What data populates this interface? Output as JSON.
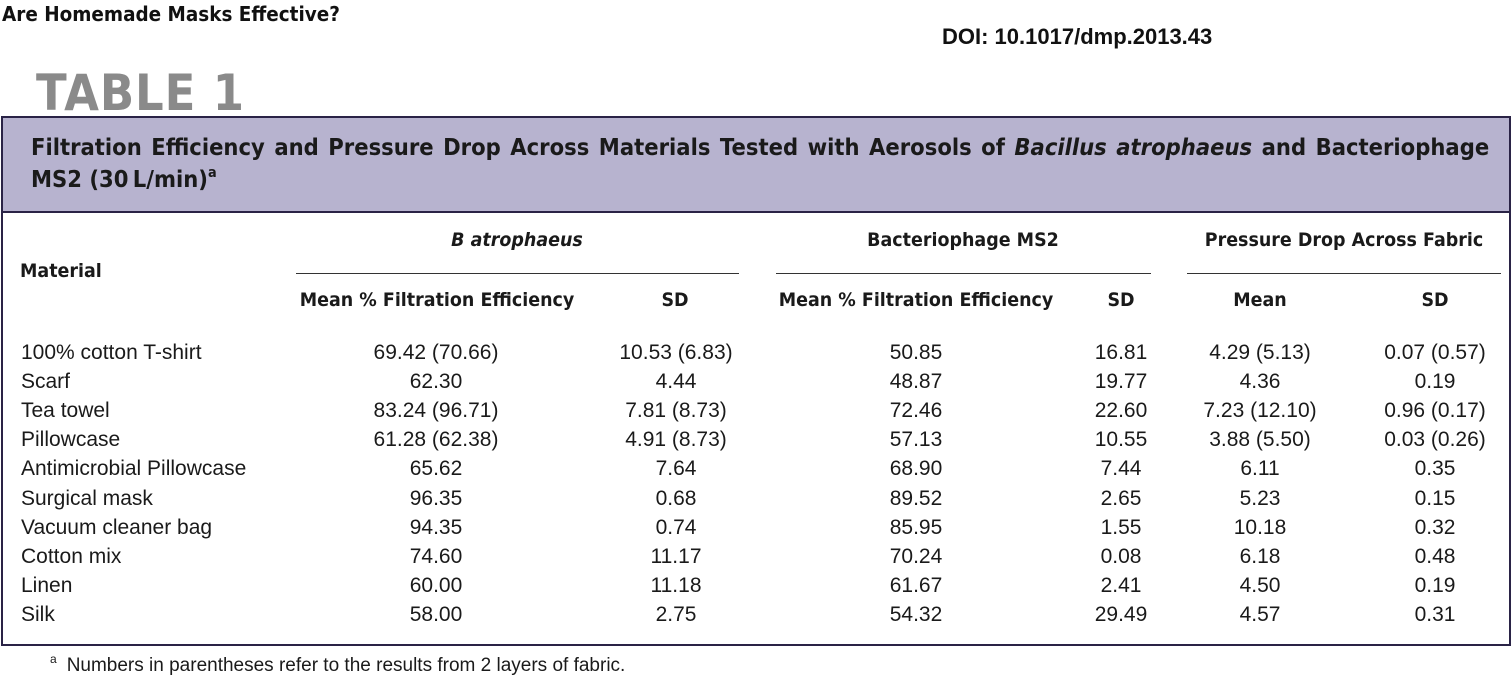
{
  "header": {
    "running_title": "Are Homemade Masks Effective?",
    "doi": "DOI: 10.1017/dmp.2013.43",
    "table_label": "TABLE 1"
  },
  "caption": {
    "text_before": "Filtration Efficiency and Pressure Drop Across Materials Tested with Aerosols of ",
    "organism_italic": "Bacillus atrophaeus",
    "text_after": " and Bacteriophage MS2 (30 L/min)",
    "footnote_marker": "a"
  },
  "columns": {
    "material": "Material",
    "group_b_atrophaeus": "B atrophaeus",
    "group_ms2": "Bacteriophage MS2",
    "group_pressure": "Pressure Drop Across Fabric",
    "mean_filtration": "Mean % Filtration Efficiency",
    "sd": "SD",
    "mean": "Mean"
  },
  "rows": [
    {
      "material": "100% cotton T-shirt",
      "ba_mean": "69.42 (70.66)",
      "ba_sd": "10.53 (6.83)",
      "ms2_mean": "50.85",
      "ms2_sd": "16.81",
      "pd_mean": "4.29 (5.13)",
      "pd_sd": "0.07 (0.57)"
    },
    {
      "material": "Scarf",
      "ba_mean": "62.30",
      "ba_sd": "4.44",
      "ms2_mean": "48.87",
      "ms2_sd": "19.77",
      "pd_mean": "4.36",
      "pd_sd": "0.19"
    },
    {
      "material": "Tea towel",
      "ba_mean": "83.24 (96.71)",
      "ba_sd": "7.81 (8.73)",
      "ms2_mean": "72.46",
      "ms2_sd": "22.60",
      "pd_mean": "7.23 (12.10)",
      "pd_sd": "0.96 (0.17)"
    },
    {
      "material": "Pillowcase",
      "ba_mean": "61.28 (62.38)",
      "ba_sd": "4.91 (8.73)",
      "ms2_mean": "57.13",
      "ms2_sd": "10.55",
      "pd_mean": "3.88 (5.50)",
      "pd_sd": "0.03 (0.26)"
    },
    {
      "material": "Antimicrobial Pillowcase",
      "ba_mean": "65.62",
      "ba_sd": "7.64",
      "ms2_mean": "68.90",
      "ms2_sd": "7.44",
      "pd_mean": "6.11",
      "pd_sd": "0.35"
    },
    {
      "material": "Surgical mask",
      "ba_mean": "96.35",
      "ba_sd": "0.68",
      "ms2_mean": "89.52",
      "ms2_sd": "2.65",
      "pd_mean": "5.23",
      "pd_sd": "0.15"
    },
    {
      "material": "Vacuum cleaner bag",
      "ba_mean": "94.35",
      "ba_sd": "0.74",
      "ms2_mean": "85.95",
      "ms2_sd": "1.55",
      "pd_mean": "10.18",
      "pd_sd": "0.32"
    },
    {
      "material": "Cotton mix",
      "ba_mean": "74.60",
      "ba_sd": "11.17",
      "ms2_mean": "70.24",
      "ms2_sd": "0.08",
      "pd_mean": "6.18",
      "pd_sd": "0.48"
    },
    {
      "material": "Linen",
      "ba_mean": "60.00",
      "ba_sd": "11.18",
      "ms2_mean": "61.67",
      "ms2_sd": "2.41",
      "pd_mean": "4.50",
      "pd_sd": "0.19"
    },
    {
      "material": "Silk",
      "ba_mean": "58.00",
      "ba_sd": "2.75",
      "ms2_mean": "54.32",
      "ms2_sd": "29.49",
      "pd_mean": "4.57",
      "pd_sd": "0.31"
    }
  ],
  "footnote": {
    "marker": "a",
    "text": "Numbers in parentheses refer to the results from 2 layers of fabric."
  }
}
